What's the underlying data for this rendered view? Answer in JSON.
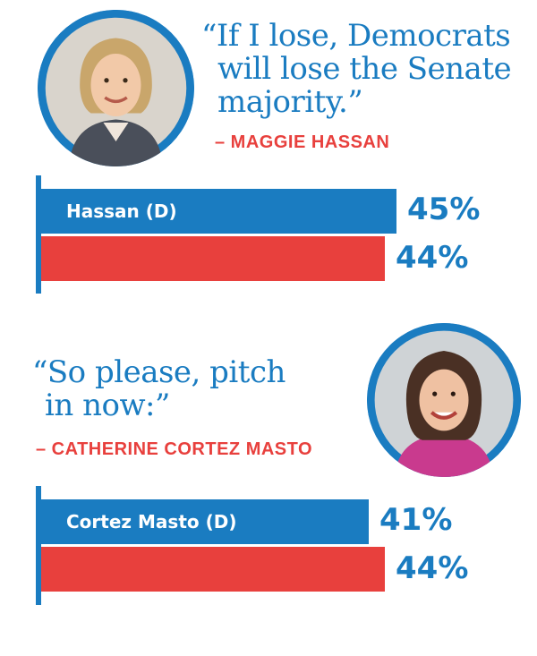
{
  "colors": {
    "democrat": "#1a7cc1",
    "republican": "#e8403d"
  },
  "sections": [
    {
      "quote_lines": [
        "“If I lose, Democrats",
        "will lose the Senate",
        "majority.”"
      ],
      "attribution": "– MAGGIE HASSAN"
    },
    {
      "quote_lines": [
        "“So please, pitch",
        "in now:”"
      ],
      "attribution": "– CATHERINE CORTEZ MASTO"
    }
  ],
  "chart_data": [
    {
      "type": "bar",
      "orientation": "horizontal",
      "categories": [
        "Hassan (D)",
        ""
      ],
      "values": [
        45,
        44
      ],
      "labels": [
        "45%",
        "44%"
      ],
      "colors": [
        "#1a7cc1",
        "#e8403d"
      ]
    },
    {
      "type": "bar",
      "orientation": "horizontal",
      "categories": [
        "Cortez Masto (D)",
        ""
      ],
      "values": [
        41,
        44
      ],
      "labels": [
        "41%",
        "44%"
      ],
      "colors": [
        "#1a7cc1",
        "#e8403d"
      ]
    }
  ]
}
